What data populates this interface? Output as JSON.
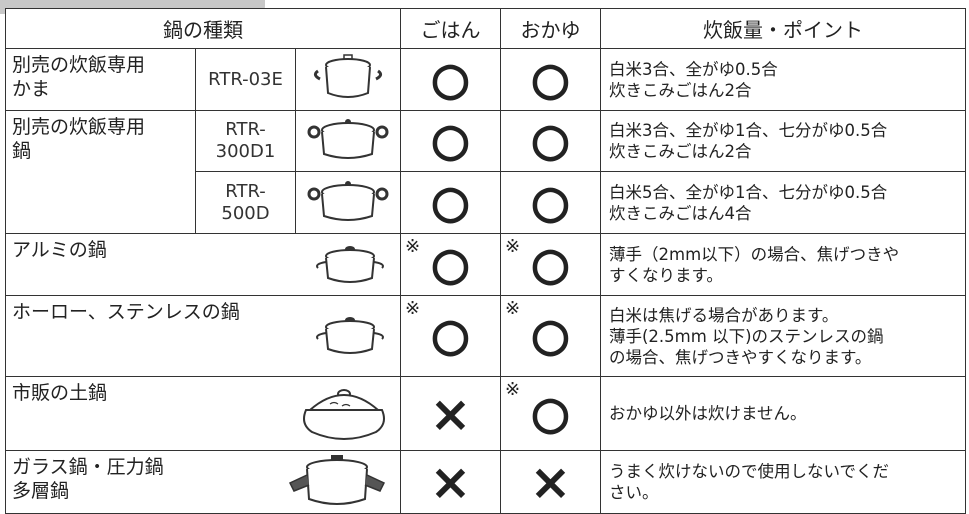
{
  "table": {
    "headers": [
      "鍋の種類",
      "ごはん",
      "おかゆ",
      "炊飯量・ポイント"
    ],
    "rows": [
      {
        "name": [
          "別売の炊飯専用",
          "かま"
        ],
        "model": [
          "RTR-03E"
        ],
        "rice": "○",
        "porridge": "○",
        "points": [
          "白米3合、全がゆ0.5合",
          "炊きこみごはん2合"
        ]
      },
      {
        "name": [
          "別売の炊飯専用",
          "鍋"
        ],
        "model": [
          "RTR-",
          "300D1"
        ],
        "rice": "○",
        "porridge": "○",
        "points": [
          "白米3合、全がゆ1合、七分がゆ0.5合",
          "炊きこみごはん2合"
        ]
      },
      {
        "model": [
          "RTR-",
          "500D"
        ],
        "rice": "○",
        "porridge": "○",
        "points": [
          "白米5合、全がゆ1合、七分がゆ0.5合",
          "炊きこみごはん4合"
        ]
      },
      {
        "name": [
          "アルミの鍋"
        ],
        "rice_note": "※",
        "rice": "○",
        "porridge_note": "※",
        "porridge": "○",
        "points": [
          "薄手（2mm以下）の場合、焦げつきや",
          "すくなります。"
        ]
      },
      {
        "name": [
          "ホーロー、ステンレスの鍋"
        ],
        "rice_note": "※",
        "rice": "○",
        "porridge_note": "※",
        "porridge": "○",
        "points": [
          "白米は焦げる場合があります。",
          "薄手(2.5mm 以下)のステンレスの鍋",
          "の場合、焦げつきやすくなります。"
        ]
      },
      {
        "name": [
          "市販の土鍋"
        ],
        "rice": "×",
        "porridge_note": "※",
        "porridge": "○",
        "points": [
          "おかゆ以外は炊けません。"
        ]
      },
      {
        "name": [
          "ガラス鍋・圧力鍋",
          "多層鍋"
        ],
        "rice": "×",
        "porridge": "×",
        "points": [
          "うまく炊けないので使用しないでくだ",
          "さい。"
        ]
      }
    ]
  }
}
